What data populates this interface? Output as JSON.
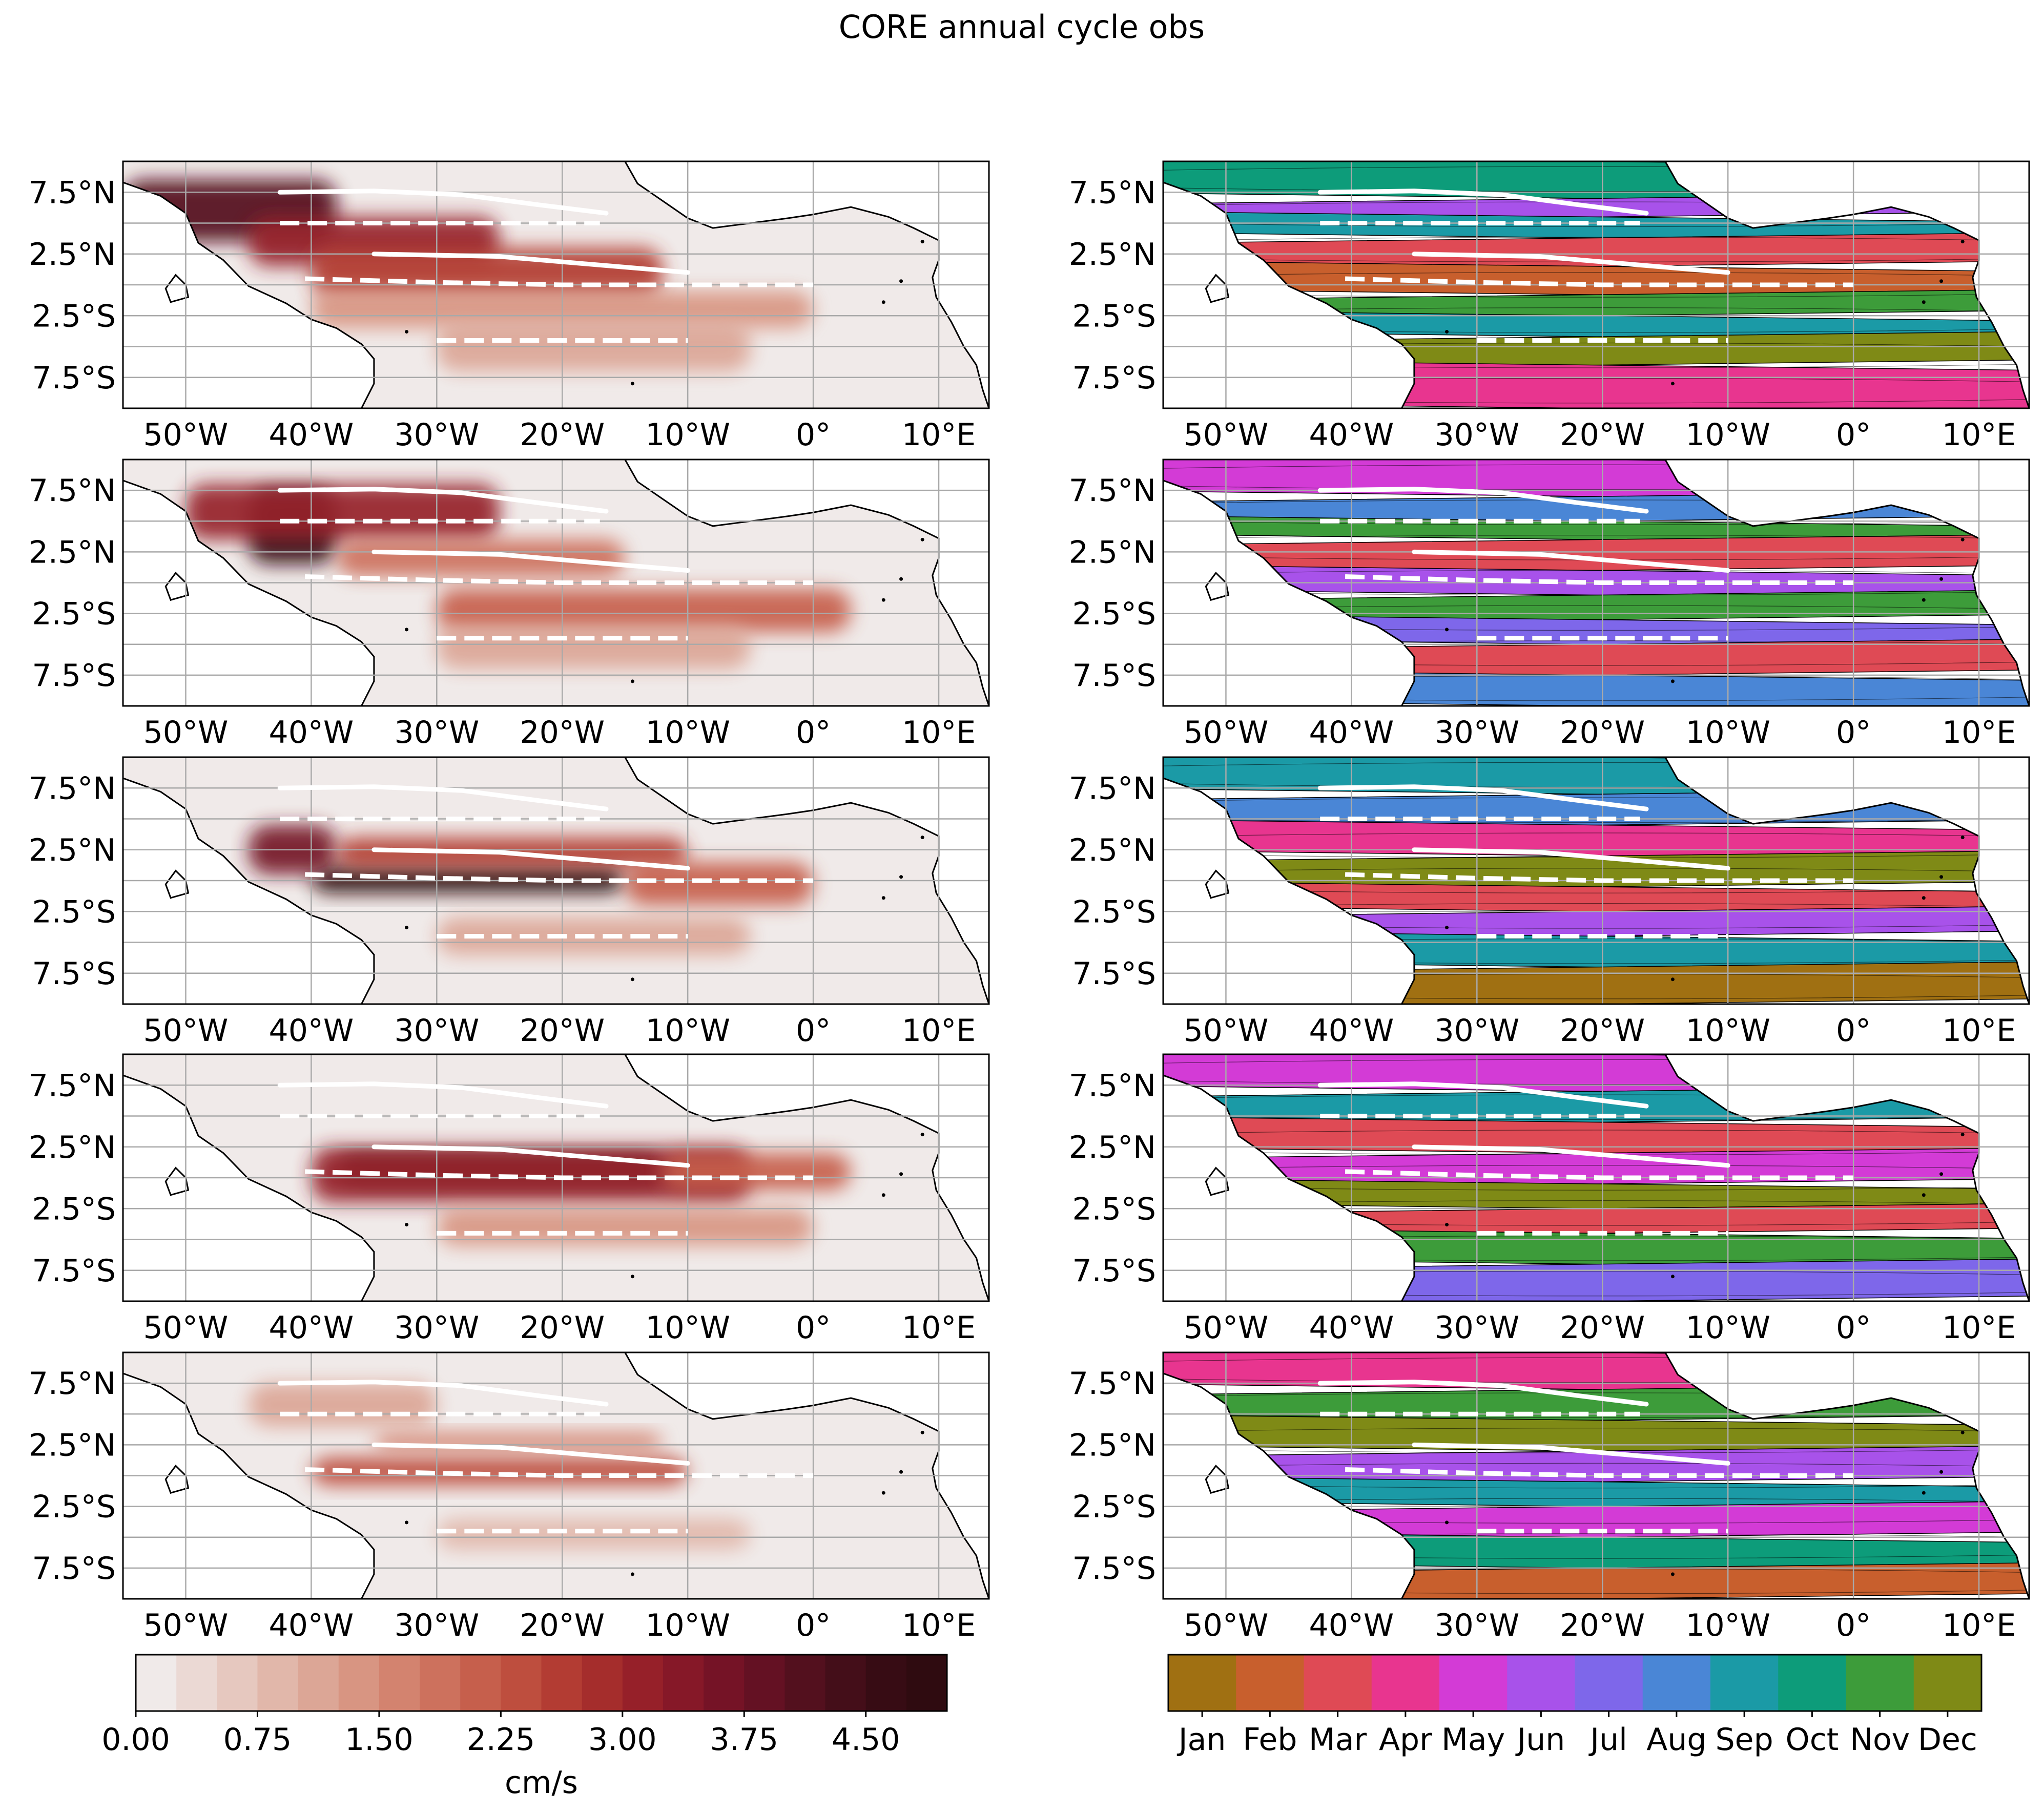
{
  "figure": {
    "title": "CORE annual cycle obs"
  },
  "chart_data": {
    "type": "heatmap",
    "layout": "5 rows x 2 columns of map panels (left: amplitude, right: phase)",
    "map_axes": {
      "x_ticks": [
        "50°W",
        "40°W",
        "30°W",
        "20°W",
        "10°W",
        "0°",
        "10°E"
      ],
      "y_ticks": [
        "7.5°N",
        "2.5°N",
        "2.5°S",
        "7.5°S"
      ],
      "lon_range": [
        -55,
        14
      ],
      "lat_range": [
        -10,
        10
      ],
      "grid": true
    },
    "current_lines": {
      "solid": [
        [
          [
            -42.5,
            7.5
          ],
          [
            -35,
            7.6
          ],
          [
            -28,
            7.3
          ],
          [
            -22,
            6.5
          ],
          [
            -16.5,
            5.8
          ]
        ],
        [
          [
            -35,
            2.5
          ],
          [
            -25,
            2.3
          ],
          [
            -17,
            1.6
          ],
          [
            -10,
            1.0
          ]
        ]
      ],
      "dashed": [
        [
          [
            -42.5,
            5.0
          ],
          [
            -17,
            5.0
          ]
        ],
        [
          [
            -40.5,
            0.5
          ],
          [
            -30,
            0.2
          ],
          [
            -20,
            0.0
          ],
          [
            0,
            0.0
          ]
        ],
        [
          [
            -30,
            -4.5
          ],
          [
            -10,
            -4.5
          ]
        ]
      ]
    },
    "amplitude_colorbar": {
      "label": "cm/s",
      "tick_labels": [
        "0.00",
        "0.75",
        "1.50",
        "2.25",
        "3.00",
        "3.75",
        "4.50"
      ],
      "range": [
        0,
        5.0
      ],
      "levels": 20,
      "colors": [
        "#f0eae9",
        "#ebd9d4",
        "#e6c8bf",
        "#e1b7aa",
        "#dca696",
        "#d89582",
        "#d3836f",
        "#cd715d",
        "#c65f4c",
        "#be4e3e",
        "#b33c33",
        "#a52d2c",
        "#962029",
        "#861828",
        "#751326",
        "#641123",
        "#53101e",
        "#440e19",
        "#370c14",
        "#2f0b10"
      ]
    },
    "phase_colorbar": {
      "tick_labels": [
        "Jan",
        "Feb",
        "Mar",
        "Apr",
        "May",
        "Jun",
        "Jul",
        "Aug",
        "Sep",
        "Oct",
        "Nov",
        "Dec"
      ],
      "colors": [
        "#a07012",
        "#c85f2d",
        "#df4a55",
        "#e8358f",
        "#d33bd6",
        "#a852ea",
        "#7e67ea",
        "#4a86d6",
        "#1b9aa6",
        "#0d9c7a",
        "#3d9c3a",
        "#7f8a16"
      ]
    },
    "amplitude_panels": [
      {
        "row": 1,
        "max_cm_s": 4.5,
        "bands": [
          {
            "lon0": -55,
            "lon1": -38,
            "lat0": 3.5,
            "lat1": 8.5,
            "value": 4.2
          },
          {
            "lon0": -45,
            "lon1": -25,
            "lat0": 1.5,
            "lat1": 5.5,
            "value": 3.0
          },
          {
            "lon0": -40,
            "lon1": -12,
            "lat0": -1.0,
            "lat1": 3.0,
            "value": 2.6
          },
          {
            "lon0": -40,
            "lon1": 0,
            "lat0": -3.5,
            "lat1": -0.5,
            "value": 1.4
          },
          {
            "lon0": -30,
            "lon1": -5,
            "lat0": -7.0,
            "lat1": -3.0,
            "value": 1.0
          }
        ]
      },
      {
        "row": 2,
        "max_cm_s": 4.7,
        "bands": [
          {
            "lon0": -45,
            "lon1": -38,
            "lat0": 1.5,
            "lat1": 7.5,
            "value": 4.6
          },
          {
            "lon0": -50,
            "lon1": -25,
            "lat0": 3.5,
            "lat1": 8.0,
            "value": 3.0
          },
          {
            "lon0": -38,
            "lon1": -15,
            "lat0": 0.5,
            "lat1": 3.5,
            "value": 1.8
          },
          {
            "lon0": -30,
            "lon1": 3,
            "lat0": -4.0,
            "lat1": -0.5,
            "value": 2.2
          },
          {
            "lon0": -30,
            "lon1": -5,
            "lat0": -7.0,
            "lat1": -3.5,
            "value": 1.2
          }
        ]
      },
      {
        "row": 3,
        "max_cm_s": 4.9,
        "bands": [
          {
            "lon0": -40,
            "lon1": -15,
            "lat0": -1.0,
            "lat1": 1.2,
            "value": 4.8
          },
          {
            "lon0": -45,
            "lon1": -38,
            "lat0": 0.5,
            "lat1": 4.5,
            "value": 3.6
          },
          {
            "lon0": -38,
            "lon1": -10,
            "lat0": 1.0,
            "lat1": 3.5,
            "value": 2.5
          },
          {
            "lon0": -15,
            "lon1": 0,
            "lat0": -2.0,
            "lat1": 1.5,
            "value": 2.0
          },
          {
            "lon0": -30,
            "lon1": -5,
            "lat0": -6.0,
            "lat1": -3.0,
            "value": 1.2
          }
        ]
      },
      {
        "row": 4,
        "max_cm_s": 5.0,
        "bands": [
          {
            "lon0": -38,
            "lon1": -12,
            "lat0": -0.5,
            "lat1": 1.8,
            "value": 5.0
          },
          {
            "lon0": -40,
            "lon1": -5,
            "lat0": -2.0,
            "lat1": 2.5,
            "value": 3.0
          },
          {
            "lon0": -12,
            "lon1": 3,
            "lat0": -1.0,
            "lat1": 2.0,
            "value": 2.2
          },
          {
            "lon0": -30,
            "lon1": 0,
            "lat0": -5.5,
            "lat1": -2.5,
            "value": 1.3
          }
        ]
      },
      {
        "row": 5,
        "max_cm_s": 2.5,
        "bands": [
          {
            "lon0": -40,
            "lon1": -10,
            "lat0": -0.8,
            "lat1": 1.5,
            "value": 2.3
          },
          {
            "lon0": -35,
            "lon1": -12,
            "lat0": 2.0,
            "lat1": 3.5,
            "value": 1.5
          },
          {
            "lon0": -45,
            "lon1": -30,
            "lat0": 4.0,
            "lat1": 7.5,
            "value": 1.0
          },
          {
            "lon0": -30,
            "lon1": -5,
            "lat0": -6.0,
            "lat1": -3.5,
            "value": 0.8
          }
        ]
      }
    ],
    "phase_panels": [
      {
        "row": 1,
        "bands": [
          {
            "lat0": 7.0,
            "lat1": 10.0,
            "month": "Oct"
          },
          {
            "lat0": 5.5,
            "lat1": 7.0,
            "month": "Jun"
          },
          {
            "lat0": 3.8,
            "lat1": 5.5,
            "month": "Sep"
          },
          {
            "lat0": 1.5,
            "lat1": 3.8,
            "month": "Mar"
          },
          {
            "lat0": -0.8,
            "lat1": 1.5,
            "month": "Feb"
          },
          {
            "lat0": -2.5,
            "lat1": -0.8,
            "month": "Nov"
          },
          {
            "lat0": -4.2,
            "lat1": -2.5,
            "month": "Sep"
          },
          {
            "lat0": -6.5,
            "lat1": -4.2,
            "month": "Dec"
          },
          {
            "lat0": -10.0,
            "lat1": -6.5,
            "month": "Apr"
          }
        ]
      },
      {
        "row": 2,
        "bands": [
          {
            "lat0": 7.0,
            "lat1": 10.0,
            "month": "May"
          },
          {
            "lat0": 5.0,
            "lat1": 7.0,
            "month": "Aug"
          },
          {
            "lat0": 3.5,
            "lat1": 5.0,
            "month": "Nov"
          },
          {
            "lat0": 1.0,
            "lat1": 3.5,
            "month": "Mar"
          },
          {
            "lat0": -1.0,
            "lat1": 1.0,
            "month": "Jun"
          },
          {
            "lat0": -3.0,
            "lat1": -1.0,
            "month": "Nov"
          },
          {
            "lat0": -5.0,
            "lat1": -3.0,
            "month": "Jul"
          },
          {
            "lat0": -7.5,
            "lat1": -5.0,
            "month": "Mar"
          },
          {
            "lat0": -10.0,
            "lat1": -7.5,
            "month": "Aug"
          }
        ]
      },
      {
        "row": 3,
        "bands": [
          {
            "lat0": 7.0,
            "lat1": 10.0,
            "month": "Sep"
          },
          {
            "lat0": 4.5,
            "lat1": 7.0,
            "month": "Aug"
          },
          {
            "lat0": 2.0,
            "lat1": 4.5,
            "month": "Apr"
          },
          {
            "lat0": -0.5,
            "lat1": 2.0,
            "month": "Dec"
          },
          {
            "lat0": -2.5,
            "lat1": -0.5,
            "month": "Mar"
          },
          {
            "lat0": -4.5,
            "lat1": -2.5,
            "month": "Jun"
          },
          {
            "lat0": -7.0,
            "lat1": -4.5,
            "month": "Sep"
          },
          {
            "lat0": -10.0,
            "lat1": -7.0,
            "month": "Jan"
          }
        ]
      },
      {
        "row": 4,
        "bands": [
          {
            "lat0": 7.0,
            "lat1": 10.0,
            "month": "May"
          },
          {
            "lat0": 4.5,
            "lat1": 7.0,
            "month": "Sep"
          },
          {
            "lat0": 2.0,
            "lat1": 4.5,
            "month": "Mar"
          },
          {
            "lat0": -0.5,
            "lat1": 2.0,
            "month": "May"
          },
          {
            "lat0": -2.5,
            "lat1": -0.5,
            "month": "Dec"
          },
          {
            "lat0": -4.5,
            "lat1": -2.5,
            "month": "Mar"
          },
          {
            "lat0": -7.0,
            "lat1": -4.5,
            "month": "Nov"
          },
          {
            "lat0": -10.0,
            "lat1": -7.0,
            "month": "Jul"
          }
        ]
      },
      {
        "row": 5,
        "bands": [
          {
            "lat0": 7.0,
            "lat1": 10.0,
            "month": "Apr"
          },
          {
            "lat0": 4.5,
            "lat1": 7.0,
            "month": "Nov"
          },
          {
            "lat0": 2.0,
            "lat1": 4.5,
            "month": "Dec"
          },
          {
            "lat0": -0.5,
            "lat1": 2.0,
            "month": "Jun"
          },
          {
            "lat0": -2.5,
            "lat1": -0.5,
            "month": "Sep"
          },
          {
            "lat0": -5.0,
            "lat1": -2.5,
            "month": "May"
          },
          {
            "lat0": -7.5,
            "lat1": -5.0,
            "month": "Oct"
          },
          {
            "lat0": -10.0,
            "lat1": -7.5,
            "month": "Feb"
          }
        ]
      }
    ]
  }
}
